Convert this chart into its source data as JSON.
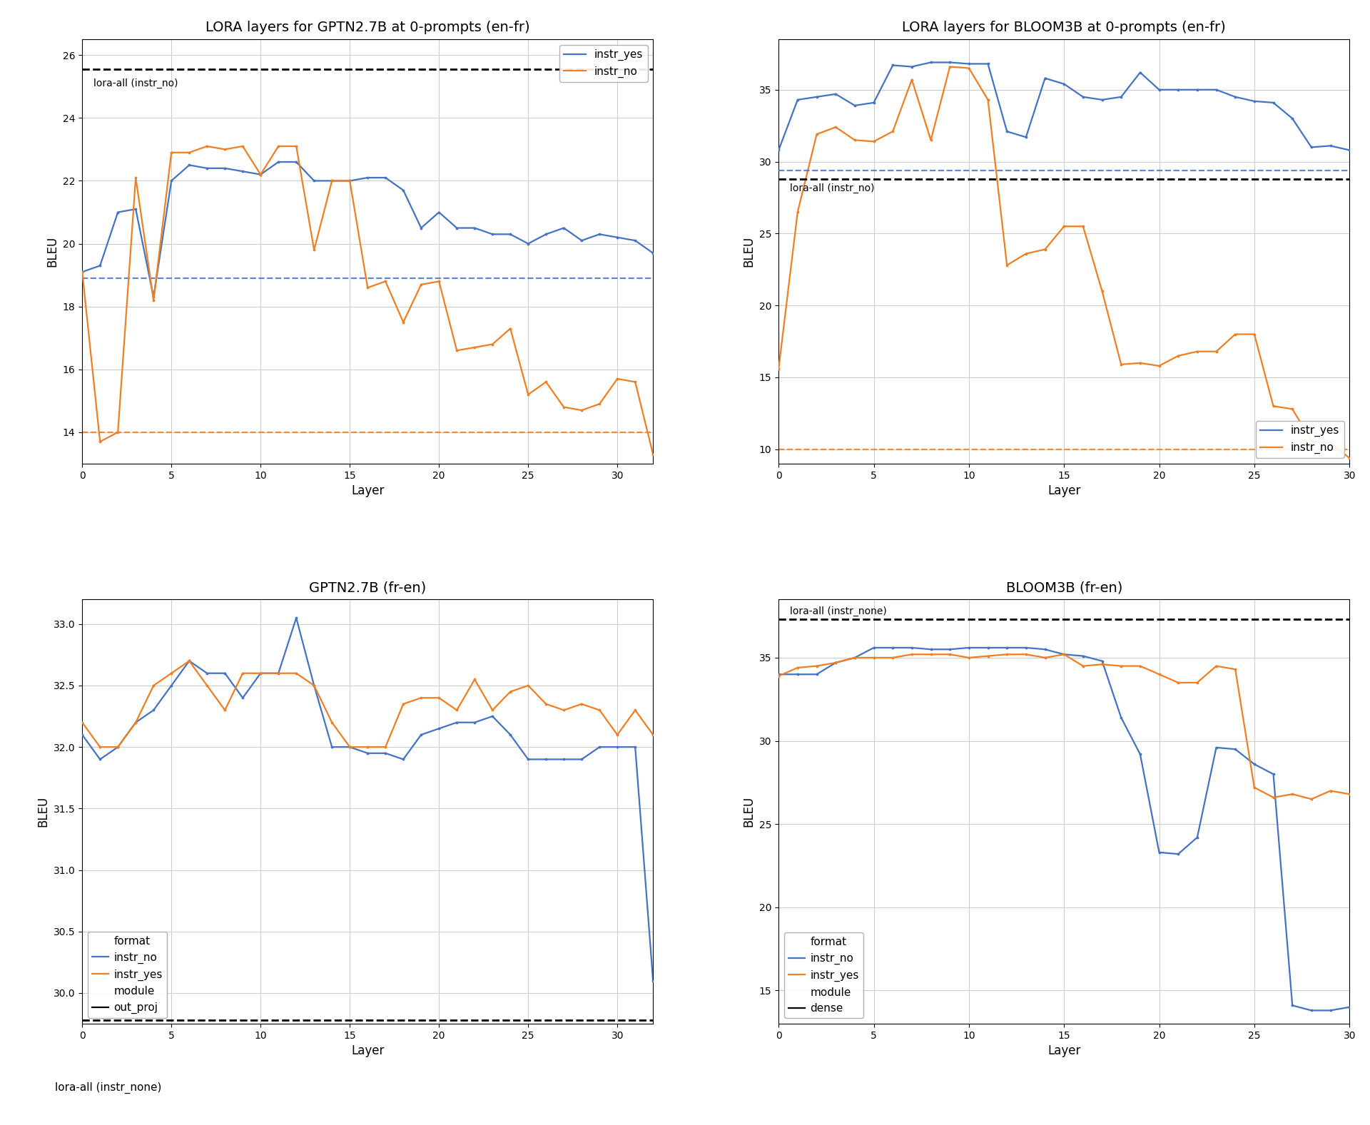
{
  "gptn_enfr": {
    "title": "LORA layers for GPTN2.7B at 0-prompts (en-fr)",
    "xlabel": "Layer",
    "ylabel": "BLEU",
    "hline_black": 25.55,
    "hline_blue": 18.9,
    "hline_orange": 14.0,
    "hline_black_label": "lora-all (instr_no)",
    "layers_instr_yes": [
      0,
      1,
      2,
      3,
      4,
      5,
      6,
      7,
      8,
      9,
      10,
      11,
      12,
      13,
      14,
      15,
      16,
      17,
      18,
      19,
      20,
      21,
      22,
      23,
      24,
      25,
      26,
      27,
      28,
      29,
      30,
      31,
      32
    ],
    "instr_yes": [
      19.1,
      19.3,
      21.0,
      21.1,
      18.3,
      22.0,
      22.5,
      22.4,
      22.4,
      22.3,
      22.2,
      22.6,
      22.6,
      22.0,
      22.0,
      22.0,
      22.1,
      22.1,
      21.7,
      20.5,
      21.0,
      20.5,
      20.5,
      20.3,
      20.3,
      20.0,
      20.3,
      20.5,
      20.1,
      20.3,
      20.2,
      20.1,
      19.7
    ],
    "layers_instr_no": [
      0,
      1,
      2,
      3,
      4,
      5,
      6,
      7,
      8,
      9,
      10,
      11,
      12,
      13,
      14,
      15,
      16,
      17,
      18,
      19,
      20,
      21,
      22,
      23,
      24,
      25,
      26,
      27,
      28,
      29,
      30,
      31,
      32
    ],
    "instr_no": [
      19.1,
      13.7,
      14.0,
      22.1,
      18.2,
      22.9,
      22.9,
      23.1,
      23.0,
      23.1,
      22.2,
      23.1,
      23.1,
      19.8,
      22.0,
      22.0,
      18.6,
      18.8,
      17.5,
      18.7,
      18.8,
      16.6,
      16.7,
      16.8,
      17.3,
      15.2,
      15.6,
      14.8,
      14.7,
      14.9,
      15.7,
      15.6,
      13.3
    ],
    "xlim": [
      0,
      32
    ],
    "ylim": [
      13,
      26.5
    ]
  },
  "bloom_enfr": {
    "title": "LORA layers for BLOOM3B at 0-prompts (en-fr)",
    "xlabel": "Layer",
    "ylabel": "BLEU",
    "hline_black": 28.8,
    "hline_blue": 29.4,
    "hline_orange": 10.0,
    "hline_black_label": "lora-all (instr_no)",
    "layers_instr_yes": [
      0,
      1,
      2,
      3,
      4,
      5,
      6,
      7,
      8,
      9,
      10,
      11,
      12,
      13,
      14,
      15,
      16,
      17,
      18,
      19,
      20,
      21,
      22,
      23,
      24,
      25,
      26,
      27,
      28,
      29,
      30
    ],
    "instr_yes": [
      30.8,
      34.3,
      34.5,
      34.7,
      33.9,
      34.1,
      36.7,
      36.6,
      36.9,
      36.9,
      36.8,
      36.8,
      32.1,
      31.7,
      35.8,
      35.4,
      34.5,
      34.3,
      34.5,
      36.2,
      35.0,
      35.0,
      35.0,
      35.0,
      34.5,
      34.2,
      34.1,
      33.0,
      31.0,
      31.1,
      30.8
    ],
    "layers_instr_no": [
      0,
      1,
      2,
      3,
      4,
      5,
      6,
      7,
      8,
      9,
      10,
      11,
      12,
      13,
      14,
      15,
      16,
      17,
      18,
      19,
      20,
      21,
      22,
      23,
      24,
      25,
      26,
      27,
      28,
      29,
      30
    ],
    "instr_no": [
      15.6,
      26.5,
      31.9,
      32.4,
      31.5,
      31.4,
      32.1,
      35.7,
      31.5,
      36.6,
      36.5,
      34.3,
      22.8,
      23.6,
      23.9,
      25.5,
      25.5,
      21.0,
      15.9,
      16.0,
      15.8,
      16.5,
      16.8,
      16.8,
      18.0,
      18.0,
      13.0,
      12.8,
      10.6,
      10.4,
      9.4
    ],
    "xlim": [
      0,
      30
    ],
    "ylim": [
      9,
      38.5
    ]
  },
  "gptn_fren": {
    "title": "GPTN2.7B (fr-en)",
    "xlabel": "Layer",
    "ylabel": "BLEU",
    "hline_black": 29.78,
    "layers_instr_no": [
      0,
      1,
      2,
      3,
      4,
      5,
      6,
      7,
      8,
      9,
      10,
      11,
      12,
      13,
      14,
      15,
      16,
      17,
      18,
      19,
      20,
      21,
      22,
      23,
      24,
      25,
      26,
      27,
      28,
      29,
      30,
      31,
      32
    ],
    "instr_no": [
      32.1,
      31.9,
      32.0,
      32.2,
      32.3,
      32.5,
      32.7,
      32.6,
      32.6,
      32.4,
      32.6,
      32.6,
      33.05,
      32.5,
      32.0,
      32.0,
      31.95,
      31.95,
      31.9,
      32.1,
      32.15,
      32.2,
      32.2,
      32.25,
      32.1,
      31.9,
      31.9,
      31.9,
      31.9,
      32.0,
      32.0,
      32.0,
      30.1
    ],
    "layers_instr_yes": [
      0,
      1,
      2,
      3,
      4,
      5,
      6,
      7,
      8,
      9,
      10,
      11,
      12,
      13,
      14,
      15,
      16,
      17,
      18,
      19,
      20,
      21,
      22,
      23,
      24,
      25,
      26,
      27,
      28,
      29,
      30,
      31,
      32
    ],
    "instr_yes": [
      32.2,
      32.0,
      32.0,
      32.2,
      32.5,
      32.6,
      32.7,
      32.5,
      32.3,
      32.6,
      32.6,
      32.6,
      32.6,
      32.5,
      32.2,
      32.0,
      32.0,
      32.0,
      32.35,
      32.4,
      32.4,
      32.3,
      32.55,
      32.3,
      32.45,
      32.5,
      32.35,
      32.3,
      32.35,
      32.3,
      32.1,
      32.3,
      32.1
    ],
    "xlim": [
      0,
      32
    ],
    "ylim": [
      29.75,
      33.2
    ],
    "legend_module": "out_proj"
  },
  "bloom_fren": {
    "title": "BLOOM3B (fr-en)",
    "xlabel": "Layer",
    "ylabel": "BLEU",
    "hline_black": 37.3,
    "hline_black_label": "lora-all (instr_none)",
    "layers_instr_no": [
      0,
      1,
      2,
      3,
      4,
      5,
      6,
      7,
      8,
      9,
      10,
      11,
      12,
      13,
      14,
      15,
      16,
      17,
      18,
      19,
      20,
      21,
      22,
      23,
      24,
      25,
      26,
      27,
      28,
      29,
      30
    ],
    "instr_no": [
      34.0,
      34.0,
      34.0,
      34.7,
      35.0,
      35.6,
      35.6,
      35.6,
      35.5,
      35.5,
      35.6,
      35.6,
      35.6,
      35.6,
      35.5,
      35.2,
      35.1,
      34.8,
      31.4,
      29.2,
      23.3,
      23.2,
      24.2,
      29.6,
      29.5,
      28.6,
      28.0,
      14.1,
      13.8,
      13.8,
      14.0
    ],
    "layers_instr_yes": [
      0,
      1,
      2,
      3,
      4,
      5,
      6,
      7,
      8,
      9,
      10,
      11,
      12,
      13,
      14,
      15,
      16,
      17,
      18,
      19,
      20,
      21,
      22,
      23,
      24,
      25,
      26,
      27,
      28,
      29,
      30
    ],
    "instr_yes": [
      33.9,
      34.4,
      34.5,
      34.7,
      35.0,
      35.0,
      35.0,
      35.2,
      35.2,
      35.2,
      35.0,
      35.1,
      35.2,
      35.2,
      35.0,
      35.2,
      34.5,
      34.6,
      34.5,
      34.5,
      34.0,
      33.5,
      33.5,
      34.5,
      34.3,
      27.2,
      26.6,
      26.8,
      26.5,
      27.0,
      26.8
    ],
    "xlim": [
      0,
      30
    ],
    "ylim": [
      13,
      38.5
    ],
    "legend_module": "dense"
  },
  "colors": {
    "instr_yes_top": "#4472c4",
    "instr_no_top": "#f07e22",
    "instr_no_bot": "#4472c4",
    "instr_yes_bot": "#f07e22"
  },
  "bottom_label": "lora-all (instr_none)"
}
